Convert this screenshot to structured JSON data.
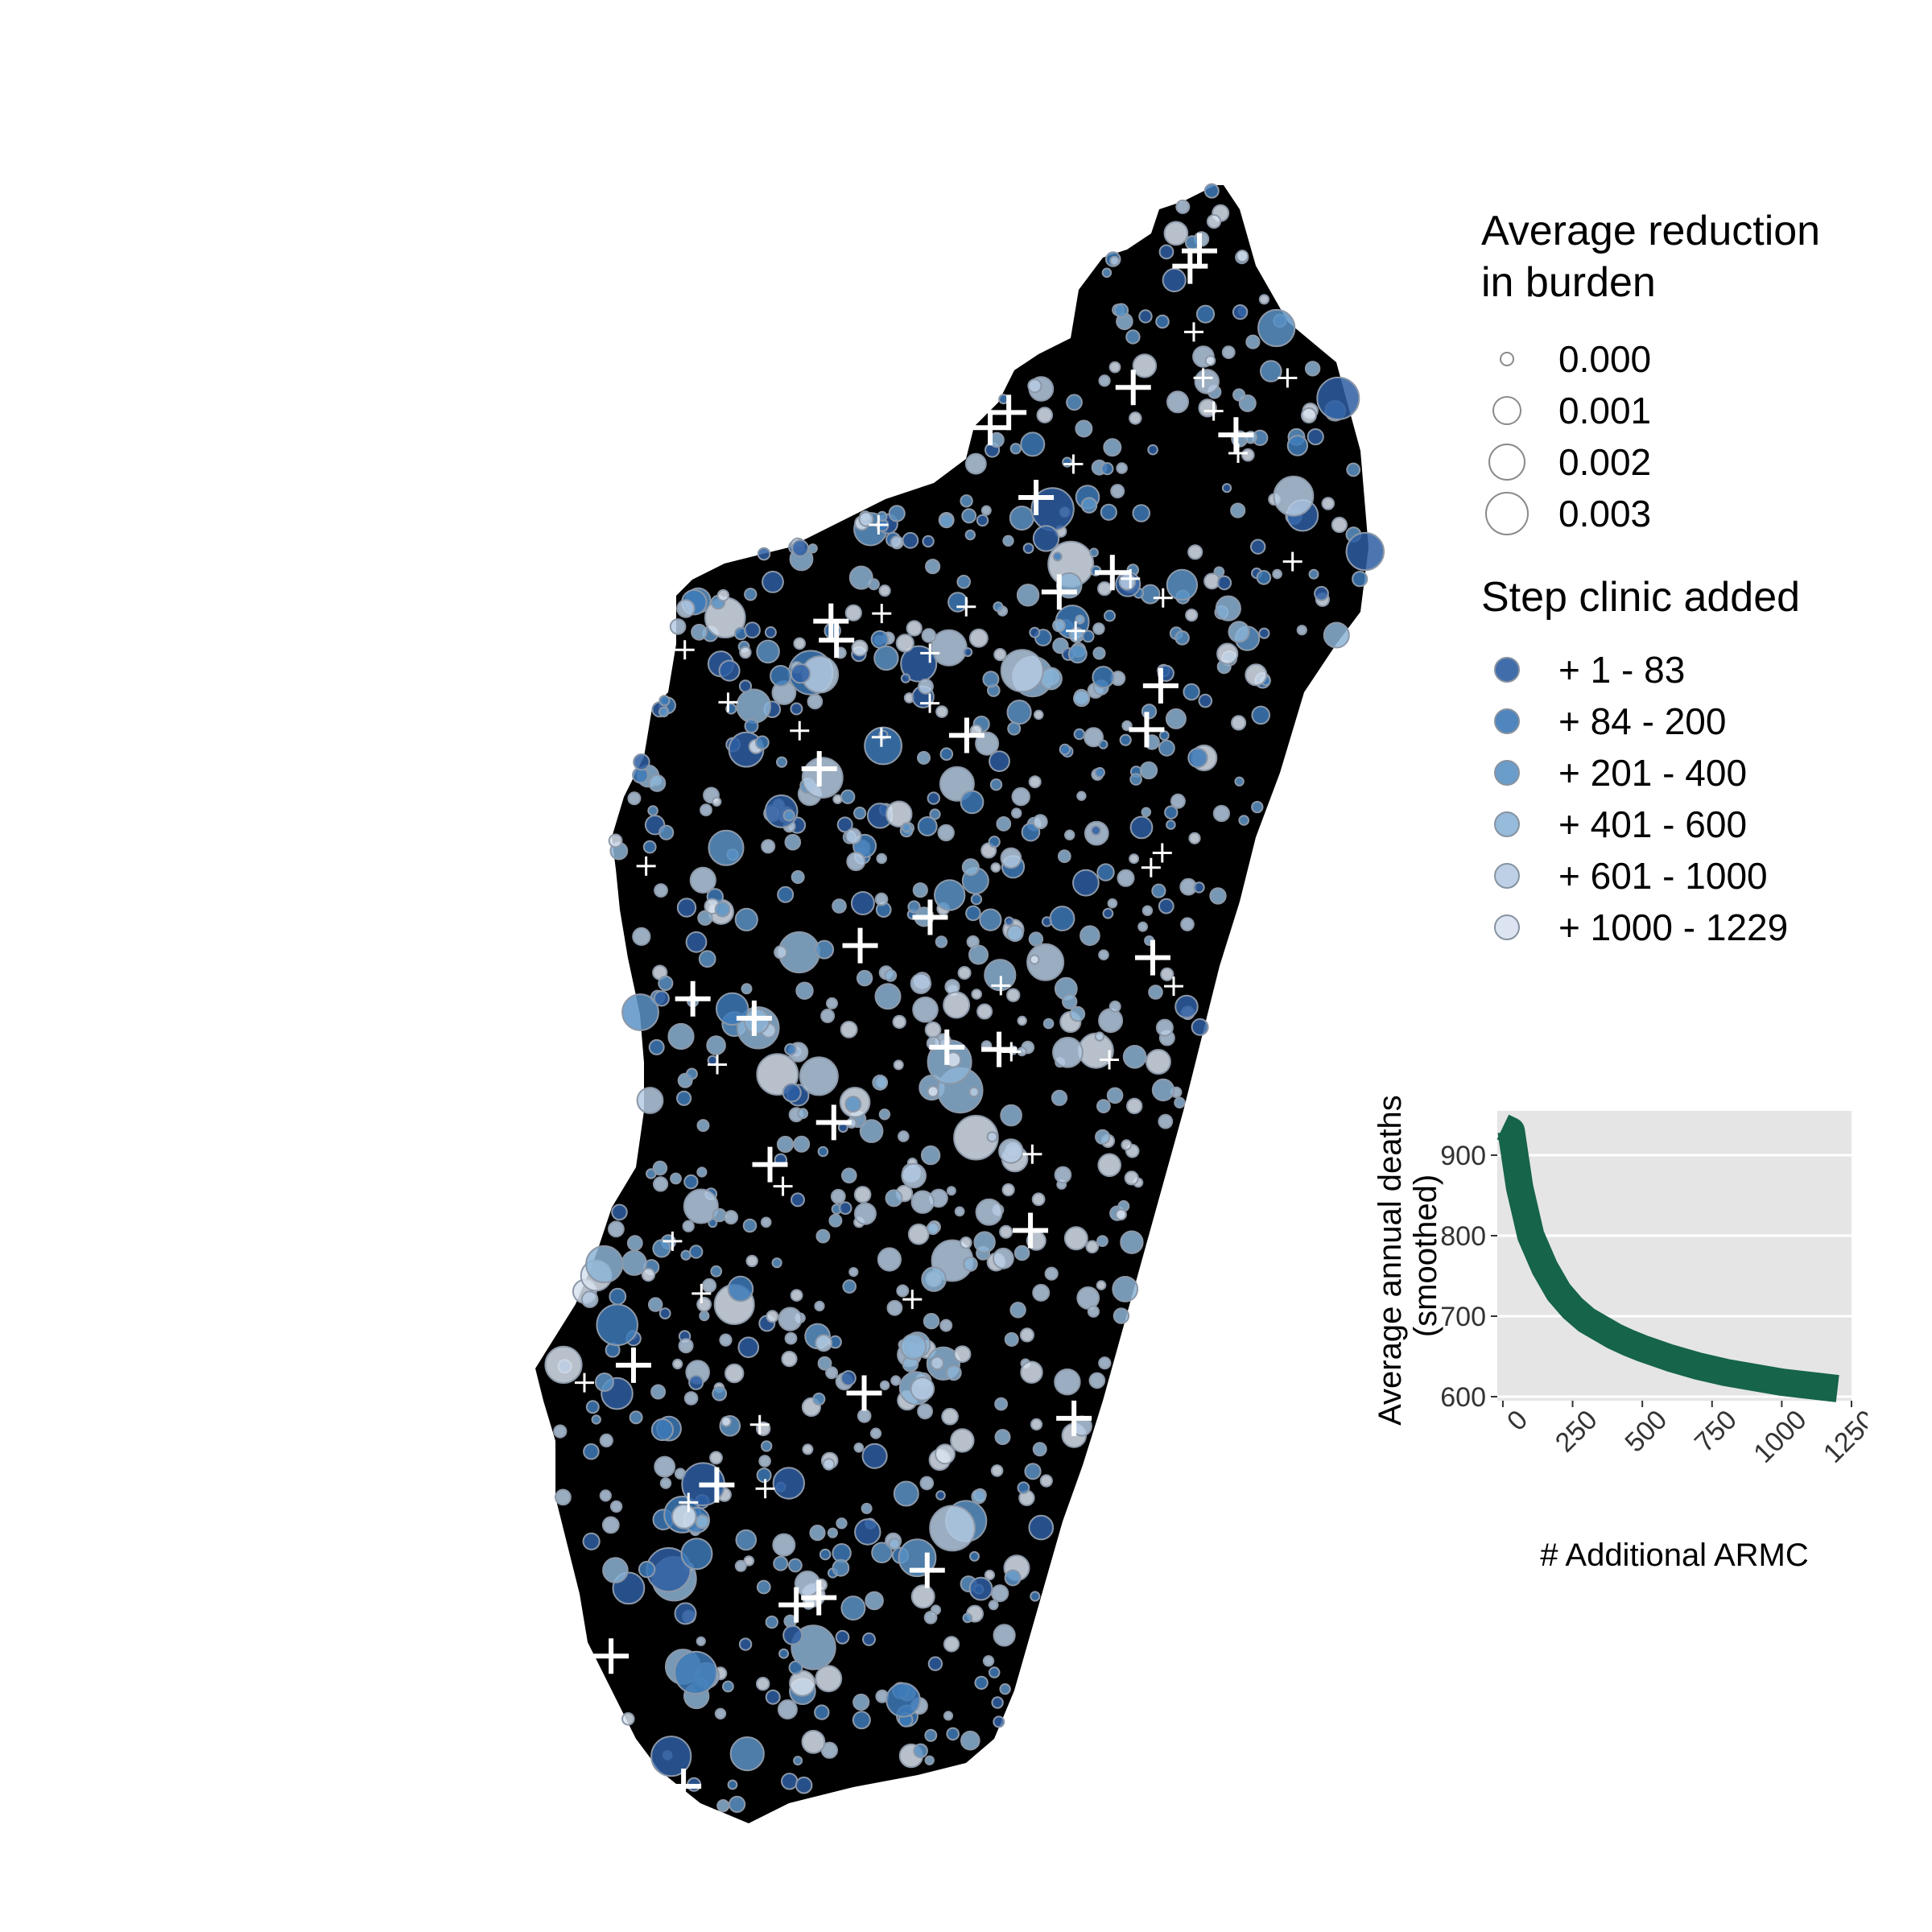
{
  "legend_size": {
    "title": "Average reduction\n in burden",
    "items": [
      {
        "label": "0.000",
        "value": 0.0
      },
      {
        "label": "0.001",
        "value": 0.001
      },
      {
        "label": "0.002",
        "value": 0.002
      },
      {
        "label": "0.003",
        "value": 0.003
      }
    ]
  },
  "legend_color": {
    "title": "Step clinic added",
    "items": [
      {
        "label": "+ 1 - 83",
        "color": "#2e5ea3"
      },
      {
        "label": "+ 84 - 200",
        "color": "#3d7ab8"
      },
      {
        "label": "+ 201 - 400",
        "color": "#5b93c6"
      },
      {
        "label": "+ 401 - 600",
        "color": "#8cb4d6"
      },
      {
        "label": "+ 601 - 1000",
        "color": "#b6cbe3"
      },
      {
        "label": "+ 1000 - 1229",
        "color": "#d8e2ef"
      }
    ]
  },
  "map": {
    "land_color": "#000000",
    "existing_clinic_marker": "cross",
    "marker_color": "#ffffff"
  },
  "chart_data": {
    "type": "line",
    "xlabel": "# Additional ARMC",
    "ylabel": "Average annual deaths\n(smoothed)",
    "xlim": [
      -20,
      1250
    ],
    "ylim": [
      595,
      955
    ],
    "x_ticks": [
      0,
      250,
      500,
      750,
      1000,
      1250
    ],
    "y_ticks": [
      600,
      700,
      800,
      900
    ],
    "grid": true,
    "line_color": "#16644a",
    "x": [
      0,
      30,
      60,
      100,
      150,
      200,
      250,
      300,
      350,
      400,
      450,
      500,
      550,
      600,
      650,
      700,
      750,
      800,
      850,
      900,
      950,
      1000,
      1050,
      1100,
      1150,
      1200
    ],
    "y": [
      935,
      930,
      860,
      800,
      760,
      730,
      710,
      695,
      685,
      675,
      667,
      660,
      654,
      648,
      643,
      638,
      634,
      630,
      627,
      624,
      621,
      618,
      616,
      614,
      612,
      610
    ]
  }
}
